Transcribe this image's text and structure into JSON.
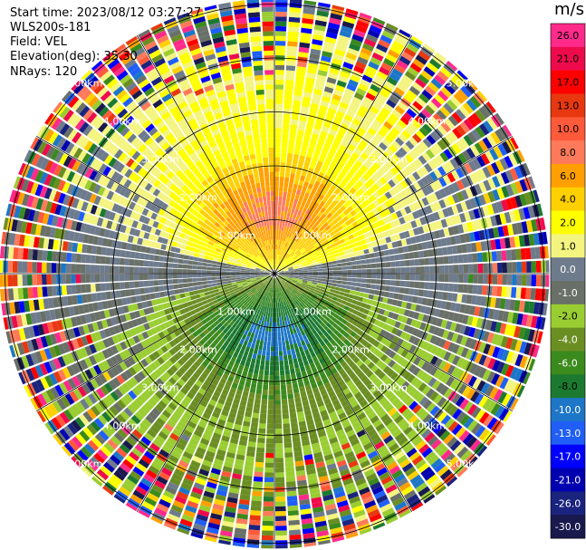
{
  "header": {
    "start_time_label": "Start time: 2023/08/12 03:27:27",
    "instrument": "WLS200s-181",
    "field_label": "Field: VEL",
    "elevation_label": "Elevation(deg): 35.30",
    "nrays_label": "NRays: 120"
  },
  "chart_data": {
    "type": "heatmap",
    "subtype": "polar PPI scan",
    "title": "",
    "field": "VEL",
    "units": "m/s",
    "n_rays": 120,
    "elevation_deg": 35.3,
    "range_rings_km": [
      1.0,
      2.0,
      3.0,
      4.0,
      5.0
    ],
    "range_ring_labels": [
      "1.00km",
      "2.00km",
      "3.00km",
      "4.00km",
      "5.00km"
    ],
    "spokes_deg": [
      0,
      30,
      60,
      90,
      120,
      150,
      180,
      210,
      240,
      270,
      300,
      330
    ],
    "colorbar": {
      "label": "m/s",
      "ticks": [
        "26.0",
        "21.0",
        "17.0",
        "13.0",
        "10.0",
        "8.0",
        "6.0",
        "4.0",
        "2.0",
        "1.0",
        "0.0",
        "-1.0",
        "-2.0",
        "-4.0",
        "-6.0",
        "-8.0",
        "-10.0",
        "-13.0",
        "-17.0",
        "-21.0",
        "-26.0",
        "-30.0"
      ],
      "colors": [
        "#ff2a8a",
        "#ee0b4c",
        "#ff0000",
        "#e83810",
        "#ff5a3a",
        "#ff7a5a",
        "#ffa000",
        "#ffd000",
        "#ffff00",
        "#f4f480",
        "#6e7b8c",
        "#697068",
        "#9acd32",
        "#6b8e23",
        "#3b8a1e",
        "#1c7a30",
        "#1d76c7",
        "#1f5ff7",
        "#0000ff",
        "#0000b0",
        "#1a237e",
        "#19194e"
      ]
    },
    "velocity_pattern": {
      "description": "positive (receding) velocities to the north, negative to the south, near zero east and west, noisy beyond about 3.5 km",
      "north_peak_mps": 6.0,
      "south_peak_mps": -6.0,
      "clean_range_km": 3.3,
      "max_range_km": 5.1
    }
  }
}
